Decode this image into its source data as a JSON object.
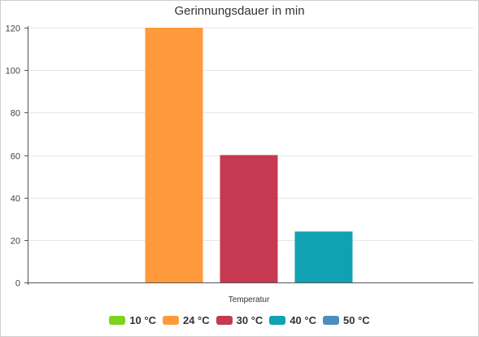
{
  "chart_data": {
    "type": "bar",
    "title": "Gerinnungsdauer in min",
    "xlabel": "Temperatur",
    "ylabel": "",
    "ylim": [
      0,
      120
    ],
    "yticks": [
      0,
      20,
      40,
      60,
      80,
      100,
      120
    ],
    "grid": true,
    "legend_position": "bottom",
    "categories": [
      "10 °C",
      "24 °C",
      "30 °C",
      "40 °C",
      "50 °C"
    ],
    "values": [
      0,
      120,
      60,
      24,
      0
    ],
    "colors": [
      "#7ed321",
      "#ff9a3c",
      "#c53a50",
      "#10a2b2",
      "#4a8fc0"
    ]
  }
}
